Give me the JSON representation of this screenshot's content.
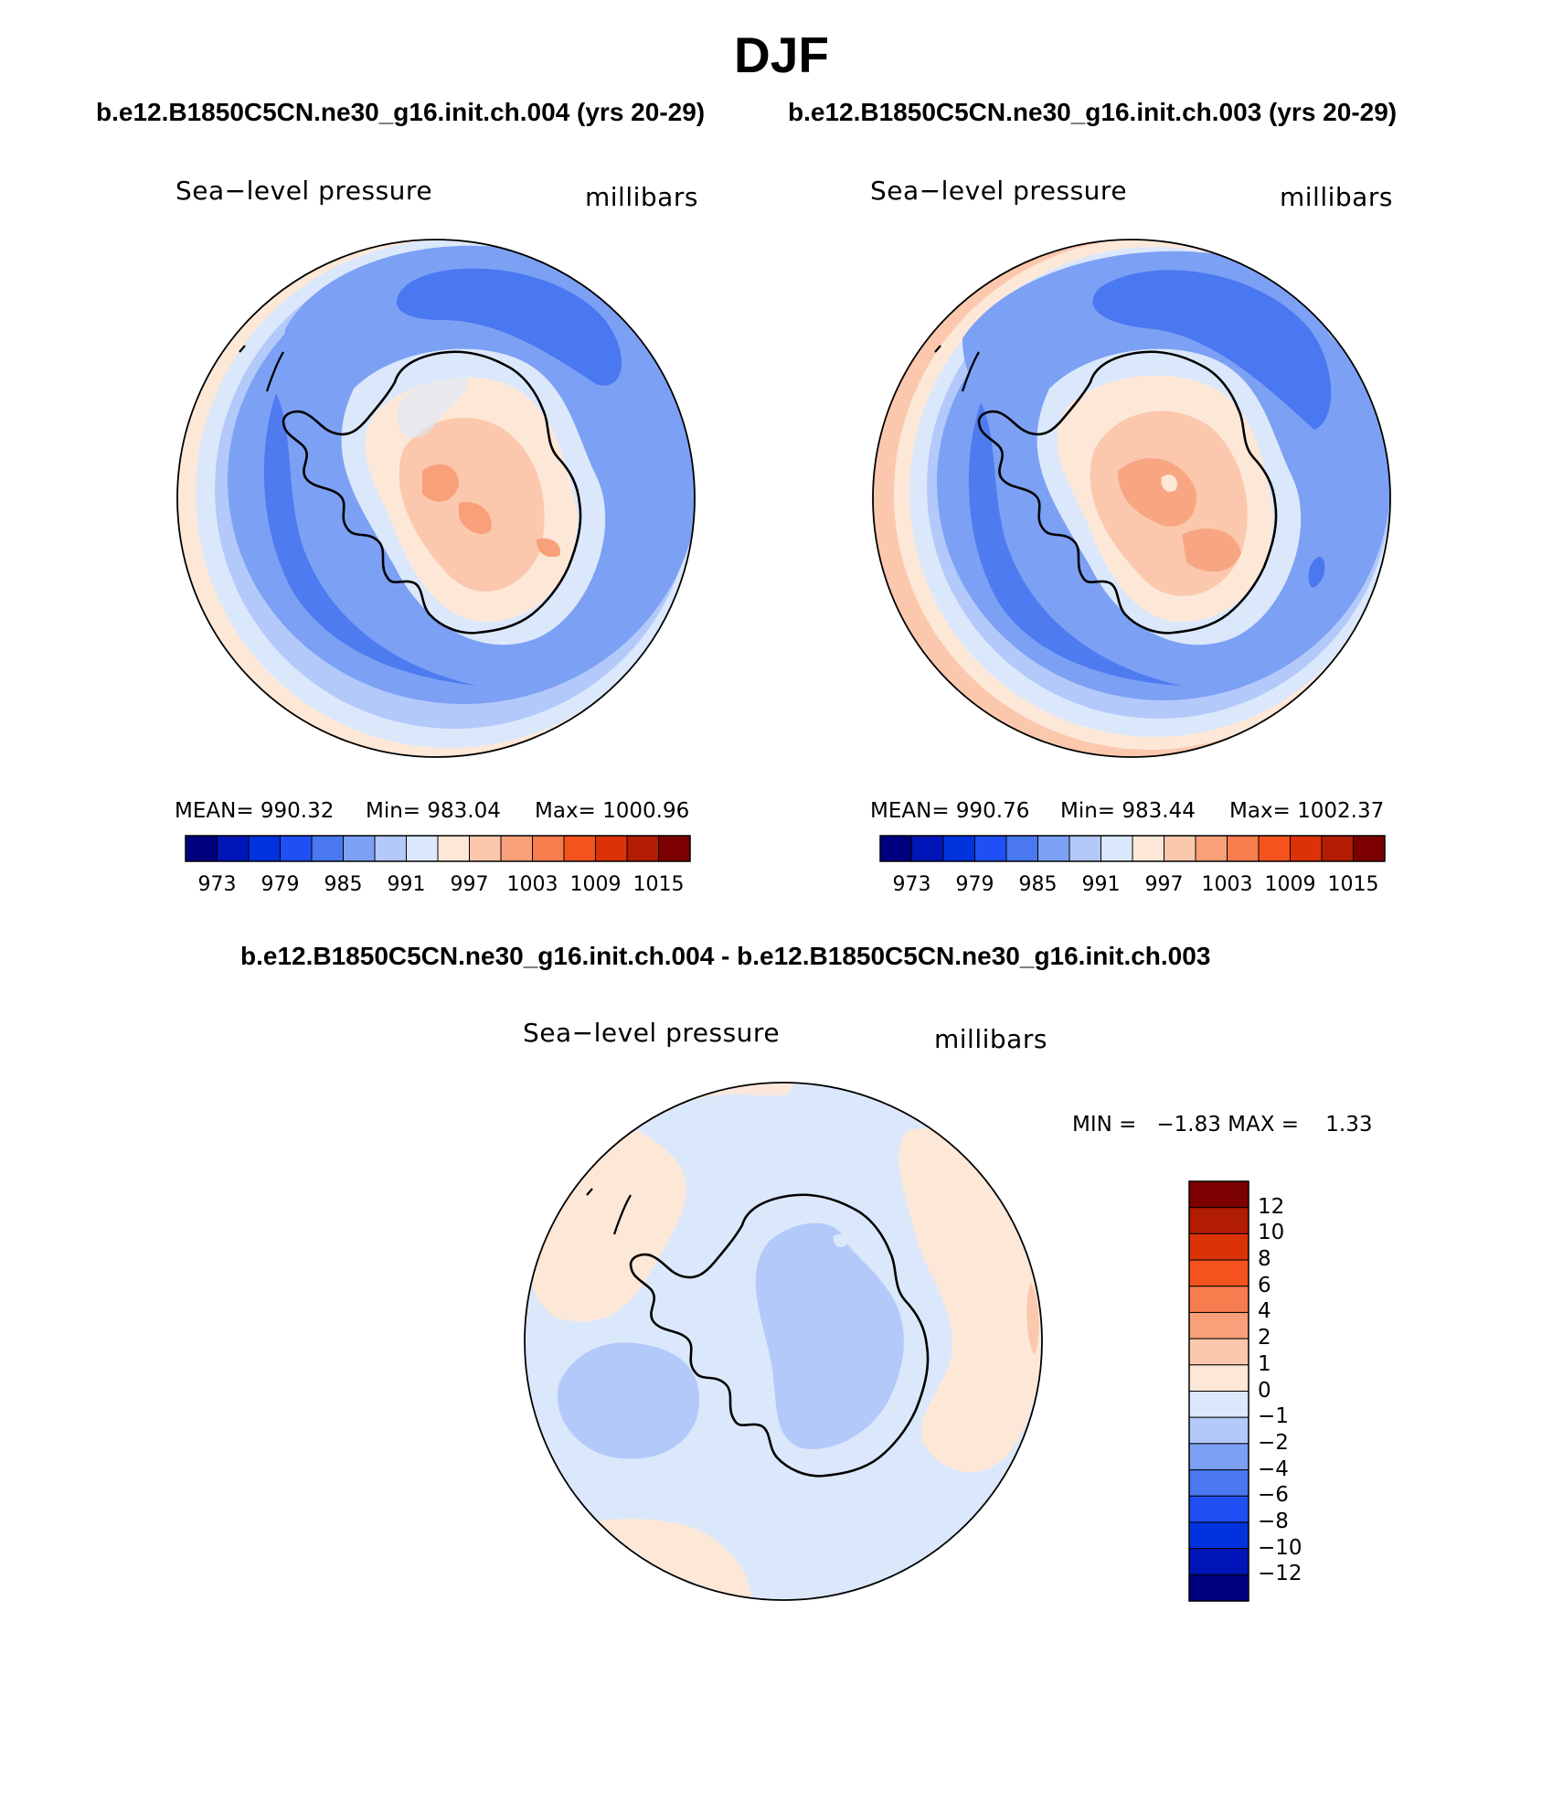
{
  "figure": {
    "title": "DJF",
    "header_left": "b.e12.B1850C5CN.ne30_g16.init.ch.004 (yrs 20-29)",
    "header_right": "b.e12.B1850C5CN.ne30_g16.init.ch.003 (yrs 20-29)",
    "diff_title": "b.e12.B1850C5CN.ne30_g16.init.ch.004 - b.e12.B1850C5CN.ne30_g16.init.ch.003"
  },
  "panels": {
    "left": {
      "variable_label": "Sea−level pressure",
      "units_label": "millibars",
      "stats": {
        "mean": "MEAN= 990.32",
        "min": "Min= 983.04",
        "max": "Max= 1000.96"
      }
    },
    "right": {
      "variable_label": "Sea−level pressure",
      "units_label": "millibars",
      "stats": {
        "mean": "MEAN= 990.76",
        "min": "Min= 983.44",
        "max": "Max= 1002.37"
      }
    },
    "diff": {
      "variable_label": "Sea−level pressure",
      "units_label": "millibars",
      "minmax": "MIN =   −1.83 MAX =    1.33"
    }
  },
  "colorbars": {
    "abs": {
      "colors": [
        "#00007f",
        "#0015b8",
        "#0033dd",
        "#1f4ff5",
        "#4978f0",
        "#7ca0f4",
        "#b3c9fa",
        "#dbe8fb",
        "#fde8d8",
        "#fbc8ad",
        "#f7a07a",
        "#f77d4e",
        "#f4531d",
        "#dc3208",
        "#b21c03",
        "#7c0000"
      ],
      "tick_labels": [
        "973",
        "979",
        "985",
        "991",
        "997",
        "1003",
        "1009",
        "1015"
      ]
    },
    "diff": {
      "colors_top_to_bottom": [
        "#7c0000",
        "#b21c03",
        "#dc3208",
        "#f4531d",
        "#f77d4e",
        "#f7a07a",
        "#fbc8ad",
        "#fde8d8",
        "#dbe8fb",
        "#b3c9fa",
        "#7ca0f4",
        "#4978f0",
        "#1f4ff5",
        "#0033dd",
        "#0015b8",
        "#00007f"
      ],
      "tick_labels": [
        "12",
        "10",
        "8",
        "6",
        "4",
        "2",
        "1",
        "0",
        "−1",
        "−2",
        "−4",
        "−6",
        "−8",
        "−10",
        "−12"
      ]
    }
  },
  "map_colors": {
    "outer_warm": "#fde8d8",
    "warm2": "#fbc8ad",
    "warm3": "#f7a07a",
    "pale_blue": "#dbe8fb",
    "light_blue": "#b3c9fa",
    "mid_blue": "#7ca0f4",
    "deep_blue": "#4978f0"
  }
}
